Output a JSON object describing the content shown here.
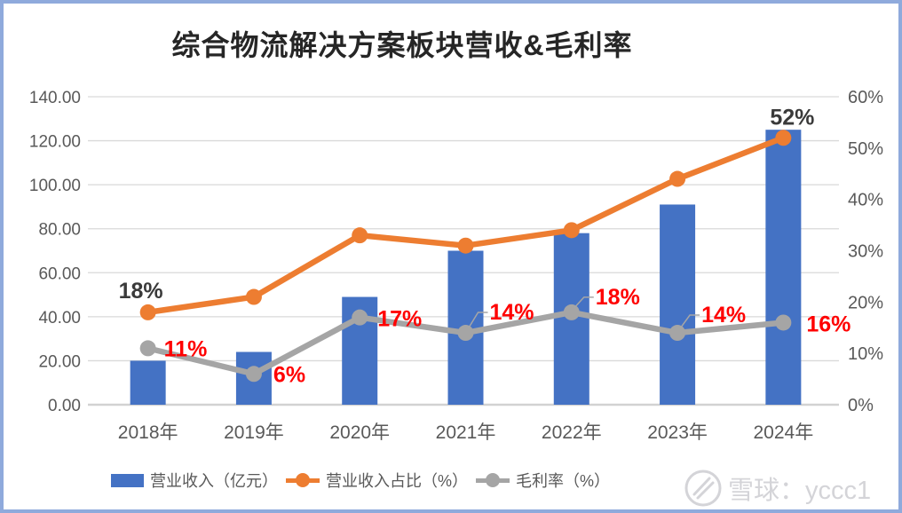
{
  "title": "综合物流解决方案板块营收&毛利率",
  "watermark": {
    "text": "雪球：yccc1"
  },
  "frame": {
    "border_color": "#8FAADC",
    "background": "#FFFFFF"
  },
  "chart_data": {
    "type": "combo-bar-line",
    "title": "综合物流解决方案板块营收&毛利率",
    "categories": [
      "2018年",
      "2019年",
      "2020年",
      "2021年",
      "2022年",
      "2023年",
      "2024年"
    ],
    "series": [
      {
        "name": "营业收入（亿元）",
        "kind": "bar",
        "axis": "left",
        "color": "#4472C4",
        "values": [
          20,
          24,
          49,
          70,
          78,
          91,
          125
        ]
      },
      {
        "name": "营业收入占比（%）",
        "kind": "line",
        "axis": "right",
        "color": "#ED7D31",
        "values": [
          18,
          21,
          33,
          31,
          34,
          44,
          52
        ],
        "point_labels": [
          {
            "index": 0,
            "text": "18%",
            "pos": "above",
            "dx": -8,
            "dy": -16,
            "color": "#3A3A3A"
          },
          {
            "index": 6,
            "text": "52%",
            "pos": "above",
            "dx": 10,
            "dy": -15,
            "color": "#3A3A3A"
          }
        ]
      },
      {
        "name": "毛利率（%）",
        "kind": "line",
        "axis": "right",
        "color": "#A5A5A5",
        "values": [
          11,
          6,
          17,
          14,
          18,
          14,
          16
        ],
        "point_labels": [
          {
            "index": 0,
            "text": "11%",
            "pos": "right",
            "dx": 18,
            "dy": 9,
            "color": "#FF0000"
          },
          {
            "index": 1,
            "text": "6%",
            "pos": "right",
            "dx": 22,
            "dy": 9,
            "color": "#FF0000"
          },
          {
            "index": 2,
            "text": "17%",
            "pos": "right",
            "dx": 20,
            "dy": 10,
            "color": "#FF0000"
          },
          {
            "index": 3,
            "text": "14%",
            "pos": "leader",
            "dx": 27,
            "dy": -15,
            "color": "#FF0000"
          },
          {
            "index": 4,
            "text": "18%",
            "pos": "leader",
            "dx": 27,
            "dy": -9,
            "color": "#FF0000"
          },
          {
            "index": 5,
            "text": "14%",
            "pos": "leader",
            "dx": 27,
            "dy": -12,
            "color": "#FF0000"
          },
          {
            "index": 6,
            "text": "16%",
            "pos": "right",
            "dx": 26,
            "dy": 10,
            "color": "#FF0000"
          }
        ]
      }
    ],
    "left_axis": {
      "min": 0,
      "max": 140,
      "ticks": [
        "0.00",
        "20.00",
        "40.00",
        "60.00",
        "80.00",
        "100.00",
        "120.00",
        "140.00"
      ]
    },
    "right_axis": {
      "min": 0,
      "max": 60,
      "ticks": [
        "0%",
        "10%",
        "20%",
        "30%",
        "40%",
        "50%",
        "60%"
      ]
    },
    "grid": {
      "color": "#D9D9D9",
      "axis_line_color": "#D2D2D2",
      "leader_color": "#A6A6A6",
      "tick_color": "#595959"
    },
    "legend_position": "bottom"
  }
}
